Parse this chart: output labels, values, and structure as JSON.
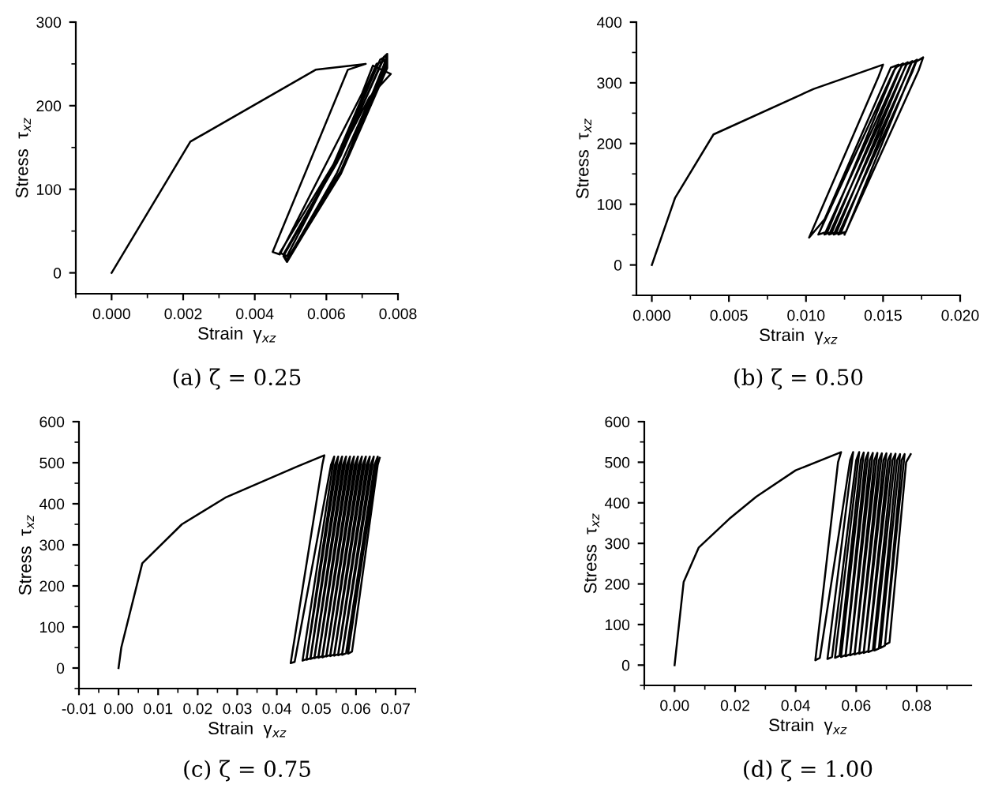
{
  "chart_data": [
    {
      "type": "line",
      "xlabel": "Strain  γ$_{xz}$",
      "ylabel": "Stress  τ$_{xz}$",
      "annotations": [
        "(a) ζ = 0.25"
      ],
      "grid": false,
      "legend": false,
      "marker": "none",
      "line_style": "solid",
      "xlim": [
        -0.001,
        0.008
      ],
      "ylim": [
        -25,
        300
      ],
      "xticks": [
        {
          "value": 0,
          "label": "0.000"
        },
        {
          "value": 0.002,
          "label": "0.002"
        },
        {
          "value": 0.004,
          "label": "0.004"
        },
        {
          "value": 0.006,
          "label": "0.006"
        },
        {
          "value": 0.008,
          "label": "0.008"
        }
      ],
      "yticks": [
        0,
        100,
        200,
        300
      ],
      "series": [
        {
          "color": "#000000",
          "x": [
            0,
            0.0022,
            0.0057,
            0.0071,
            0.0066,
            0.0045,
            0.0047,
            0.007,
            0.0073,
            0.0078,
            0.0072,
            0.0049,
            0.0047,
            0.0062,
            0.0074,
            0.0077,
            0.0076,
            0.0063,
            0.0049,
            0.0048,
            0.0063,
            0.0075,
            0.0077,
            0.0076,
            0.0064,
            0.0049,
            0.0048,
            0.0064,
            0.0076,
            0.0077,
            0.0077,
            0.0064,
            0.0049,
            0.0048,
            0.0063,
            0.0076,
            0.0077,
            0.0064,
            0.0049
          ],
          "values": [
            0,
            157,
            243,
            250,
            243,
            25,
            22,
            215,
            248,
            238,
            210,
            20,
            24,
            130,
            250,
            255,
            245,
            120,
            15,
            22,
            135,
            255,
            260,
            248,
            120,
            13,
            20,
            140,
            258,
            262,
            245,
            118,
            14,
            22,
            132,
            256,
            250,
            122,
            16
          ]
        }
      ]
    },
    {
      "type": "line",
      "xlabel": "Strain  γ$_{xz}$",
      "ylabel": "Stress  τ$_{xz}$",
      "annotations": [
        "(b) ζ = 0.50"
      ],
      "grid": false,
      "legend": false,
      "marker": "none",
      "line_style": "solid",
      "xlim": [
        -0.001,
        0.02
      ],
      "ylim": [
        -50,
        400
      ],
      "xticks": [
        {
          "value": 0,
          "label": "0.000"
        },
        {
          "value": 0.005,
          "label": "0.005"
        },
        {
          "value": 0.01,
          "label": "0.010"
        },
        {
          "value": 0.015,
          "label": "0.015"
        },
        {
          "value": 0.02,
          "label": "0.020"
        }
      ],
      "yticks": [
        0,
        100,
        200,
        300,
        400
      ],
      "series": [
        {
          "color": "#000000",
          "x": [
            0,
            0.0015,
            0.004,
            0.0105,
            0.015,
            0.0147,
            0.0102,
            0.0112,
            0.0155,
            0.016,
            0.0157,
            0.0108,
            0.0114,
            0.0158,
            0.0163,
            0.016,
            0.0112,
            0.0117,
            0.0162,
            0.0166,
            0.0163,
            0.0115,
            0.012,
            0.0165,
            0.0169,
            0.0166,
            0.0118,
            0.0123,
            0.0168,
            0.0172,
            0.0169,
            0.0121,
            0.0126,
            0.0171,
            0.0176,
            0.0173,
            0.0125
          ],
          "values": [
            0,
            110,
            215,
            290,
            330,
            310,
            45,
            75,
            325,
            330,
            320,
            50,
            55,
            325,
            332,
            318,
            50,
            55,
            328,
            334,
            318,
            50,
            55,
            330,
            336,
            318,
            50,
            55,
            332,
            338,
            318,
            50,
            55,
            334,
            342,
            320,
            50
          ]
        }
      ]
    },
    {
      "type": "line",
      "xlabel": "Strain  γ$_{xz}$",
      "ylabel": "Stress  τ$_{xz}$",
      "annotations": [
        "(c) ζ = 0.75"
      ],
      "grid": false,
      "legend": false,
      "marker": "none",
      "line_style": "solid",
      "xlim": [
        -0.01,
        0.075
      ],
      "ylim": [
        -50,
        600
      ],
      "xticks": [
        -0.01,
        {
          "value": 0,
          "label": "0.00"
        },
        0.01,
        0.02,
        0.03,
        0.04,
        0.05,
        0.06,
        0.07
      ],
      "yticks": [
        0,
        100,
        200,
        300,
        400,
        500,
        600
      ],
      "series": [
        {
          "color": "#000000",
          "x": [
            0,
            0.0007,
            0.006,
            0.016,
            0.027,
            0.045,
            0.052,
            0.0515,
            0.0435,
            0.0445,
            0.0537,
            0.0545,
            0.0465,
            0.0475,
            0.0547,
            0.0555,
            0.0475,
            0.0485,
            0.0557,
            0.0565,
            0.0485,
            0.0495,
            0.0567,
            0.0575,
            0.0495,
            0.0505,
            0.0577,
            0.0585,
            0.0505,
            0.0515,
            0.0587,
            0.0595,
            0.0515,
            0.0525,
            0.0597,
            0.0605,
            0.0525,
            0.0535,
            0.0607,
            0.0615,
            0.0535,
            0.0545,
            0.0617,
            0.0625,
            0.0545,
            0.0555,
            0.0627,
            0.0635,
            0.0555,
            0.0565,
            0.0637,
            0.0645,
            0.0565,
            0.0575,
            0.0647,
            0.0655,
            0.058,
            0.059,
            0.0655,
            0.066
          ],
          "values": [
            0,
            50,
            255,
            350,
            415,
            490,
            518,
            495,
            12,
            15,
            495,
            515,
            18,
            22,
            495,
            515,
            20,
            24,
            495,
            515,
            22,
            26,
            495,
            515,
            24,
            28,
            495,
            515,
            25,
            29,
            495,
            515,
            26,
            30,
            495,
            515,
            28,
            32,
            495,
            515,
            29,
            33,
            495,
            515,
            30,
            34,
            495,
            515,
            31,
            35,
            495,
            515,
            32,
            36,
            495,
            515,
            35,
            40,
            495,
            512
          ]
        }
      ]
    },
    {
      "type": "line",
      "xlabel": "Strain  γ$_{xz}$",
      "ylabel": "Stress  τ$_{xz}$",
      "annotations": [
        "(d) ζ = 1.00"
      ],
      "grid": false,
      "legend": false,
      "marker": "none",
      "line_style": "solid",
      "xlim": [
        -0.01,
        0.098
      ],
      "ylim": [
        -50,
        600
      ],
      "xticks": [
        {
          "value": 0,
          "label": "0.00"
        },
        {
          "value": 0.02,
          "label": "0.02"
        },
        {
          "value": 0.04,
          "label": "0.04"
        },
        {
          "value": 0.06,
          "label": "0.06"
        },
        {
          "value": 0.08,
          "label": "0.08"
        }
      ],
      "yticks": [
        0,
        100,
        200,
        300,
        400,
        500,
        600
      ],
      "series": [
        {
          "color": "#000000",
          "x": [
            0,
            0.003,
            0.008,
            0.018,
            0.027,
            0.04,
            0.055,
            0.054,
            0.0465,
            0.048,
            0.058,
            0.059,
            0.0505,
            0.052,
            0.06,
            0.061,
            0.053,
            0.0545,
            0.0615,
            0.0625,
            0.055,
            0.0565,
            0.063,
            0.064,
            0.0565,
            0.058,
            0.0645,
            0.0655,
            0.058,
            0.0595,
            0.066,
            0.067,
            0.0595,
            0.061,
            0.0675,
            0.0685,
            0.061,
            0.0625,
            0.069,
            0.07,
            0.0625,
            0.064,
            0.0705,
            0.0715,
            0.064,
            0.0655,
            0.072,
            0.073,
            0.066,
            0.0675,
            0.0735,
            0.0745,
            0.068,
            0.0695,
            0.075,
            0.076,
            0.0695,
            0.071,
            0.0765,
            0.078
          ],
          "values": [
            0,
            205,
            290,
            360,
            415,
            480,
            525,
            500,
            12,
            18,
            505,
            525,
            15,
            20,
            505,
            525,
            18,
            23,
            505,
            524,
            20,
            25,
            505,
            524,
            22,
            27,
            505,
            523,
            24,
            29,
            505,
            523,
            26,
            31,
            505,
            522,
            28,
            33,
            505,
            522,
            30,
            35,
            505,
            521,
            32,
            37,
            505,
            521,
            36,
            41,
            505,
            520,
            42,
            48,
            505,
            520,
            50,
            56,
            500,
            520
          ]
        }
      ]
    }
  ]
}
